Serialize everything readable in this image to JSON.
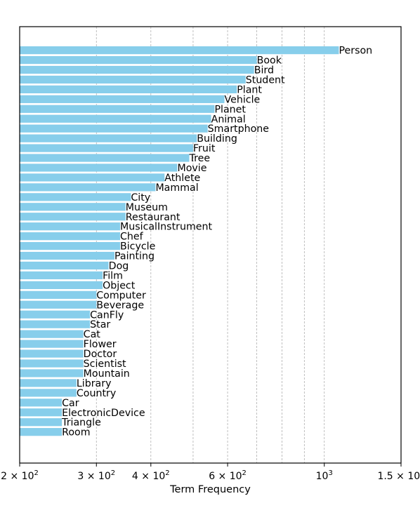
{
  "chart_data": {
    "type": "bar",
    "orientation": "horizontal",
    "x_scale": "log",
    "xlim": [
      200,
      1500
    ],
    "xlabel": "Term Frequency",
    "ylabel": "",
    "title": "",
    "bar_color": "#87CEEB",
    "grid": "vertical dashed, major and minor",
    "legend": "none",
    "x_ticks": [
      {
        "value": 200,
        "base": "2 × 10",
        "exp": "2"
      },
      {
        "value": 300,
        "base": "3 × 10",
        "exp": "2"
      },
      {
        "value": 400,
        "base": "4 × 10",
        "exp": "2"
      },
      {
        "value": 600,
        "base": "6 × 10",
        "exp": "2"
      },
      {
        "value": 1000,
        "base": "10",
        "exp": "3"
      },
      {
        "value": 1500,
        "base": "1.5 × 10",
        "exp": "3"
      }
    ],
    "minor_grid": [
      500,
      700,
      800,
      900
    ],
    "categories": [
      "Person",
      "Book",
      "Bird",
      "Student",
      "Plant",
      "Vehicle",
      "Planet",
      "Animal",
      "Smartphone",
      "Building",
      "Fruit",
      "Tree",
      "Movie",
      "Athlete",
      "Mammal",
      "City",
      "Museum",
      "Restaurant",
      "MusicalInstrument",
      "Chef",
      "Bicycle",
      "Painting",
      "Dog",
      "Film",
      "Object",
      "Computer",
      "Beverage",
      "CanFly",
      "Star",
      "Cat",
      "Flower",
      "Doctor",
      "Scientist",
      "Mountain",
      "Library",
      "Country",
      "Car",
      "ElectronicDevice",
      "Triangle",
      "Room"
    ],
    "values": [
      1080,
      700,
      690,
      660,
      630,
      590,
      560,
      550,
      540,
      510,
      500,
      490,
      460,
      430,
      410,
      360,
      350,
      350,
      340,
      340,
      340,
      330,
      320,
      310,
      310,
      300,
      300,
      290,
      290,
      280,
      280,
      280,
      280,
      280,
      270,
      270,
      250,
      250,
      250,
      250
    ]
  }
}
